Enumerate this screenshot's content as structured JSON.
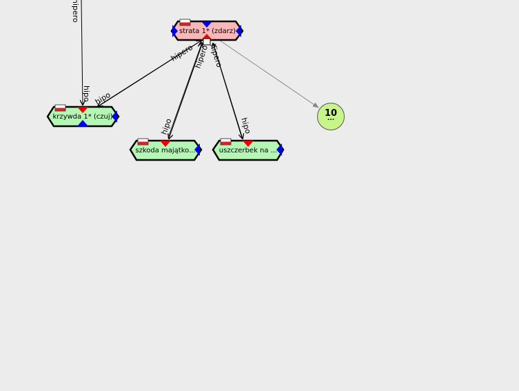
{
  "nodes": {
    "strata": {
      "label": "strata 1* (zdarz)",
      "fill": "#f9b8b8"
    },
    "krzywda": {
      "label": "krzywda 1* (czuj)",
      "fill": "#b4f7b4"
    },
    "szkoda": {
      "label": "szkoda majątko...",
      "fill": "#b4f7b4"
    },
    "uszczerbek": {
      "label": "uszczerbek na ...",
      "fill": "#b4f7b4"
    }
  },
  "more_node": {
    "count": "10",
    "dots": "...",
    "fill": "#c8f58a"
  },
  "edges": {
    "top_partial": "hipero",
    "krzywda_hipo_vertical": "hipo",
    "krzywda_hipo_diag": "hipo",
    "strata_hipero_to_krzywda": "hipero",
    "szkoda_hipo": "hipo",
    "szkoda_hipero": "hipero",
    "uszczerbek_hipero": "hipero",
    "uszczerbek_hipo": "hipo"
  },
  "colors": {
    "handle_blue": "#0000ee",
    "handle_red": "#ee0000",
    "flag_red": "#e31b23",
    "edge_dark": "#000000",
    "edge_grey": "#888888"
  }
}
